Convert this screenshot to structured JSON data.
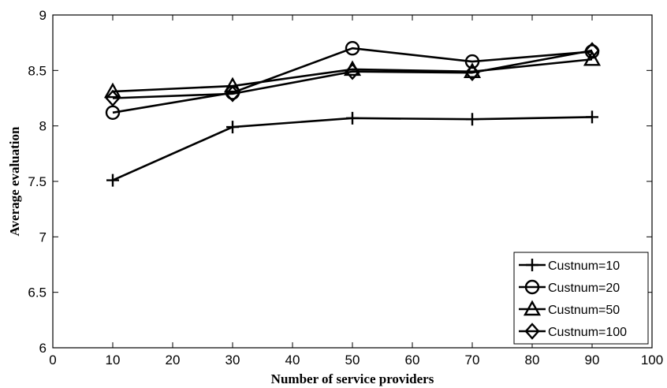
{
  "chart_data": {
    "type": "line",
    "xlabel": "Number of service providers",
    "ylabel": "Average evaluation",
    "xlim": [
      0,
      100
    ],
    "ylim": [
      6,
      9
    ],
    "xticks": [
      0,
      10,
      20,
      30,
      40,
      50,
      60,
      70,
      80,
      90,
      100
    ],
    "yticks": [
      6,
      6.5,
      7,
      7.5,
      8,
      8.5,
      9
    ],
    "grid": false,
    "legend_position": "bottom-right",
    "x": [
      10,
      30,
      50,
      70,
      90
    ],
    "series": [
      {
        "name": "Custnum=10",
        "marker": "plus",
        "values": [
          7.51,
          7.99,
          8.07,
          8.06,
          8.08
        ]
      },
      {
        "name": "Custnum=20",
        "marker": "circle",
        "values": [
          8.12,
          8.3,
          8.7,
          8.58,
          8.67
        ]
      },
      {
        "name": "Custnum=50",
        "marker": "triangle",
        "values": [
          8.31,
          8.36,
          8.51,
          8.49,
          8.6
        ]
      },
      {
        "name": "Custnum=100",
        "marker": "diamond",
        "values": [
          8.25,
          8.29,
          8.49,
          8.48,
          8.68
        ]
      }
    ],
    "colors": {
      "line": "#000000",
      "background": "#ffffff"
    }
  }
}
